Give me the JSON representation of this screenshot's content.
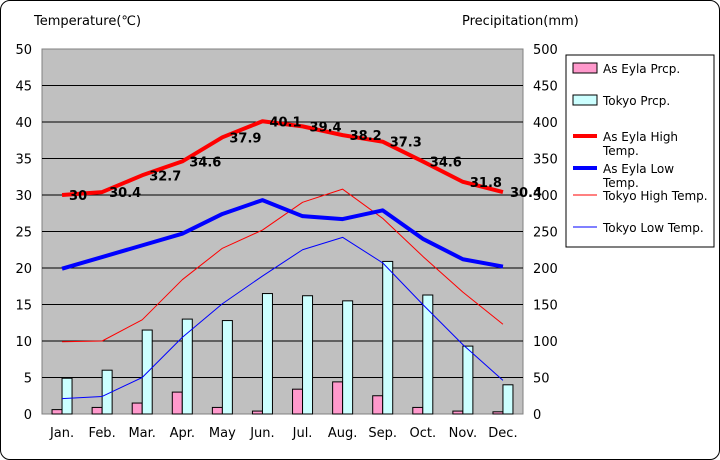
{
  "chart_data": {
    "type": "bar+line",
    "left_axis_title": "Temperature(℃)",
    "right_axis_title": "Precipitation(mm)",
    "categories": [
      "Jan.",
      "Feb.",
      "Mar.",
      "Apr.",
      "May",
      "Jun.",
      "Jul.",
      "Aug.",
      "Sep.",
      "Oct.",
      "Nov.",
      "Dec."
    ],
    "left_axis": {
      "min": 0,
      "max": 50,
      "step": 5
    },
    "right_axis": {
      "min": 0,
      "max": 500,
      "step": 50
    },
    "grid": "horizontal",
    "legend_position": "right",
    "bar_series": [
      {
        "name": "As Eyla Prcp.",
        "axis": "right",
        "color": "#ff99cc",
        "values": [
          6,
          9,
          15,
          30,
          9,
          4,
          34,
          44,
          25,
          9,
          4,
          3
        ]
      },
      {
        "name": "Tokyo Prcp.",
        "axis": "right",
        "color": "#ccffff",
        "values": [
          49,
          60,
          115,
          130,
          128,
          165,
          162,
          155,
          209,
          163,
          93,
          40
        ]
      }
    ],
    "line_series": [
      {
        "name": "As Eyla High Temp.",
        "axis": "left",
        "color": "#ff0000",
        "width": 4,
        "values": [
          30,
          30.4,
          32.7,
          34.6,
          37.9,
          40.1,
          39.4,
          38.2,
          37.3,
          34.6,
          31.8,
          30.4
        ],
        "labels": [
          "30",
          "30.4",
          "32.7",
          "34.6",
          "37.9",
          "40.1",
          "39.4",
          "38.2",
          "37.3",
          "34.6",
          "31.8",
          "30.4"
        ]
      },
      {
        "name": "As Eyla Low Temp.",
        "axis": "left",
        "color": "#0000ff",
        "width": 4,
        "values": [
          19.9,
          21.5,
          23.1,
          24.7,
          27.4,
          29.3,
          27.1,
          26.7,
          27.9,
          24.0,
          21.2,
          20.2
        ]
      },
      {
        "name": "Tokyo High Temp.",
        "axis": "left",
        "color": "#ff0000",
        "width": 1,
        "values": [
          9.9,
          10.0,
          12.9,
          18.4,
          22.7,
          25.2,
          29.0,
          30.8,
          26.8,
          21.6,
          16.7,
          12.3
        ]
      },
      {
        "name": "Tokyo Low Temp.",
        "axis": "left",
        "color": "#0000ff",
        "width": 1,
        "values": [
          2.1,
          2.4,
          5.0,
          10.5,
          15.1,
          18.9,
          22.5,
          24.2,
          20.7,
          15.0,
          9.5,
          4.6
        ]
      }
    ]
  }
}
